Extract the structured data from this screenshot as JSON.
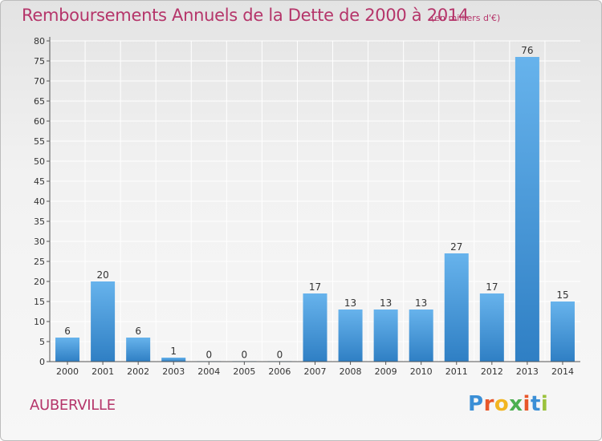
{
  "header": {
    "title": "Remboursements Annuels de la Dette de 2000 à 2014",
    "subtitle": "(en milliers d'€)"
  },
  "footer": {
    "place": "AUBERVILLE",
    "logo_letters": [
      "P",
      "r",
      "o",
      "x",
      "i",
      "t",
      "i"
    ],
    "logo_colors": [
      "#3b8fd6",
      "#e8572a",
      "#f2b521",
      "#4caf50",
      "#e8572a",
      "#3b8fd6",
      "#9bc23c"
    ]
  },
  "colors": {
    "bar_top": "#67b3ec",
    "bar_bottom": "#2f7fc4",
    "text": "#b5356a",
    "axis": "#555555",
    "grid": "#ffffff"
  },
  "chart_data": {
    "type": "bar",
    "title": "Remboursements Annuels de la Dette de 2000 à 2014",
    "categories": [
      "2000",
      "2001",
      "2002",
      "2003",
      "2004",
      "2005",
      "2006",
      "2007",
      "2008",
      "2009",
      "2010",
      "2011",
      "2012",
      "2013",
      "2014"
    ],
    "values": [
      6,
      20,
      6,
      1,
      0,
      0,
      0,
      17,
      13,
      13,
      13,
      27,
      17,
      76,
      15
    ],
    "ylim": [
      0,
      80
    ],
    "ytick_step": 5,
    "grid": true,
    "legend": "none"
  }
}
